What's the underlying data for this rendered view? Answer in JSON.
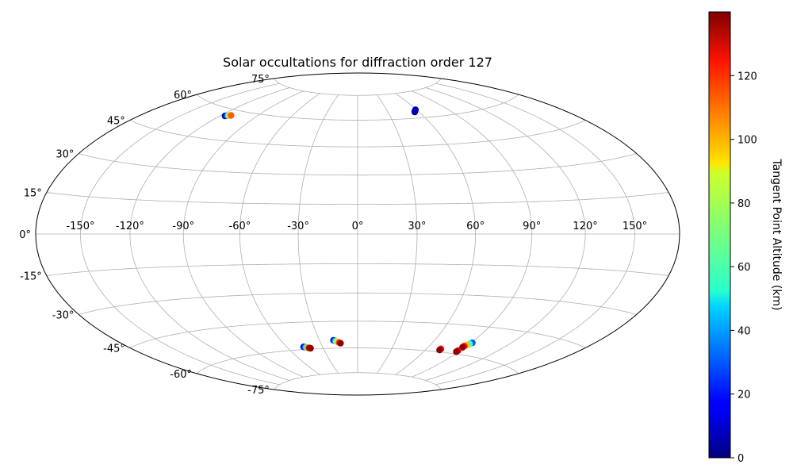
{
  "chart_data": {
    "type": "scatter",
    "projection": "hammer",
    "title": "Solar occultations for diffraction order 127",
    "grid": true,
    "lon_ticks": [
      -150,
      -120,
      -90,
      -60,
      -30,
      0,
      30,
      60,
      90,
      120,
      150
    ],
    "lon_tick_labels": [
      "-150°",
      "-120°",
      "-90°",
      "-60°",
      "-30°",
      "0°",
      "30°",
      "60°",
      "90°",
      "120°",
      "150°"
    ],
    "lat_ticks": [
      -75,
      -60,
      -45,
      -30,
      -15,
      0,
      15,
      30,
      45,
      60,
      75
    ],
    "lat_tick_labels": [
      "-75°",
      "-60°",
      "-45°",
      "-30°",
      "-15°",
      "0°",
      "15°",
      "30°",
      "45°",
      "60°",
      "75°"
    ],
    "colorbar": {
      "label": "Tangent Point Altitude (km)",
      "range": [
        0,
        140
      ],
      "ticks": [
        0,
        20,
        40,
        60,
        80,
        100,
        120
      ],
      "tick_labels": [
        "0",
        "20",
        "40",
        "60",
        "80",
        "100",
        "120"
      ],
      "colormap": "jet"
    },
    "points": [
      {
        "lon": -116,
        "lat": 56.5,
        "alt": 5
      },
      {
        "lon": -115,
        "lat": 56.7,
        "alt": 25
      },
      {
        "lon": -114,
        "lat": 56.9,
        "alt": 60
      },
      {
        "lon": -113,
        "lat": 57.0,
        "alt": 90
      },
      {
        "lon": -112,
        "lat": 57.2,
        "alt": 110
      },
      {
        "lon": 56,
        "lat": 63.5,
        "alt": 3
      },
      {
        "lon": 57,
        "lat": 64.0,
        "alt": 6
      },
      {
        "lon": 59,
        "lat": 64.7,
        "alt": 8
      },
      {
        "lon": -46,
        "lat": -58.5,
        "alt": 10
      },
      {
        "lon": -45,
        "lat": -58.7,
        "alt": 30
      },
      {
        "lon": -44,
        "lat": -58.9,
        "alt": 60
      },
      {
        "lon": -43,
        "lat": -59.1,
        "alt": 100
      },
      {
        "lon": -42,
        "lat": -59.3,
        "alt": 130
      },
      {
        "lon": -41,
        "lat": -59.5,
        "alt": 138
      },
      {
        "lon": -19,
        "lat": -55.5,
        "alt": 10
      },
      {
        "lon": -18,
        "lat": -55.8,
        "alt": 40
      },
      {
        "lon": -17,
        "lat": -56.1,
        "alt": 70
      },
      {
        "lon": -16,
        "lat": -56.4,
        "alt": 90
      },
      {
        "lon": -15,
        "lat": -56.8,
        "alt": 115
      },
      {
        "lon": -14,
        "lat": -57.2,
        "alt": 138
      },
      {
        "lon": 72,
        "lat": -58.3,
        "alt": 120
      },
      {
        "lon": 72,
        "lat": -59.0,
        "alt": 138
      },
      {
        "lon": 91,
        "lat": -53.5,
        "alt": 30
      },
      {
        "lon": 90,
        "lat": -54.2,
        "alt": 60
      },
      {
        "lon": 89,
        "lat": -54.9,
        "alt": 95
      },
      {
        "lon": 88,
        "lat": -55.6,
        "alt": 120
      },
      {
        "lon": 88,
        "lat": -56.3,
        "alt": 138
      },
      {
        "lon": 88,
        "lat": -58.2,
        "alt": 125
      },
      {
        "lon": 88,
        "lat": -58.9,
        "alt": 138
      }
    ]
  }
}
